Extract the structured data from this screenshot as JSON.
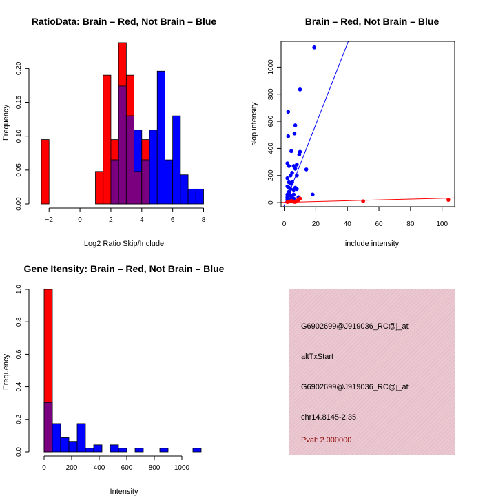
{
  "colors": {
    "red": "#ff0000",
    "blue": "#0000ff",
    "purple": "#7a0080",
    "dark_red": "#8b0000",
    "panel_bg": "#e9c6cf"
  },
  "chart_data": [
    {
      "type": "bar",
      "id": "ratio_hist",
      "title": "RatioData: Brain – Red, Not Brain – Blue",
      "xlabel": "Log2 Ratio Skip/Include",
      "ylabel": "Frequency",
      "xlim": [
        -2.5,
        8.2
      ],
      "ylim": [
        0,
        0.24
      ],
      "xticks": [
        -2,
        0,
        2,
        4,
        6,
        8
      ],
      "xtick_labels": [
        "−2",
        "0",
        "2",
        "4",
        "6",
        "8"
      ],
      "yticks": [
        0,
        0.05,
        0.1,
        0.15,
        0.2
      ],
      "ytick_labels": [
        "0.00",
        "0.05",
        "0.10",
        "0.15",
        "0.20"
      ],
      "bin_edges": [
        -2.5,
        -2,
        -1.5,
        -1,
        -0.5,
        0,
        0.5,
        1,
        1.5,
        2,
        2.5,
        3,
        3.5,
        4,
        4.5,
        5,
        5.5,
        6,
        6.5,
        7,
        7.5,
        8
      ],
      "series": [
        {
          "name": "Brain",
          "color": "red",
          "values": [
            0.095,
            0,
            0,
            0,
            0,
            0,
            0,
            0.048,
            0.19,
            0.095,
            0.238,
            0.19,
            0.048,
            0.095,
            0,
            0,
            0,
            0,
            0,
            0,
            0
          ]
        },
        {
          "name": "Not Brain",
          "color": "blue",
          "values": [
            0,
            0,
            0,
            0,
            0,
            0,
            0,
            0,
            0,
            0.065,
            0.174,
            0.13,
            0.109,
            0.065,
            0.109,
            0.196,
            0.065,
            0.13,
            0.043,
            0.022,
            0.022
          ]
        }
      ]
    },
    {
      "type": "scatter",
      "id": "intensity_scatter",
      "title": "Brain – Red, Not Brain – Blue",
      "xlabel": "include intensity",
      "ylabel": "skip intensity",
      "xlim": [
        -2,
        108
      ],
      "ylim": [
        -30,
        1190
      ],
      "xticks": [
        0,
        20,
        40,
        60,
        80,
        100
      ],
      "xtick_labels": [
        "0",
        "20",
        "40",
        "60",
        "80",
        "100"
      ],
      "yticks": [
        0,
        200,
        400,
        600,
        800,
        1000
      ],
      "ytick_labels": [
        "0",
        "200",
        "400",
        "600",
        "800",
        "1000"
      ],
      "series": [
        {
          "name": "Brain",
          "color": "red",
          "x": [
            3,
            5,
            7,
            8,
            9,
            10,
            50,
            104,
            2,
            4,
            6
          ],
          "y": [
            8,
            12,
            5,
            15,
            20,
            30,
            10,
            20,
            4,
            10,
            6
          ]
        },
        {
          "name": "Not Brain",
          "color": "blue",
          "x": [
            19,
            10,
            2.5,
            7,
            6.5,
            2.5,
            4.5,
            10,
            9.5,
            8,
            6,
            7,
            2,
            3,
            14,
            5,
            4,
            8,
            2,
            3,
            5,
            4,
            2,
            3,
            4,
            6,
            18,
            3,
            2,
            4,
            5,
            6,
            7,
            2,
            3,
            4,
            5,
            6,
            8,
            9,
            3,
            2,
            4
          ],
          "y": [
            1145,
            835,
            670,
            570,
            510,
            490,
            380,
            375,
            355,
            280,
            270,
            250,
            290,
            270,
            245,
            220,
            200,
            200,
            180,
            150,
            150,
            140,
            120,
            110,
            100,
            95,
            60,
            80,
            60,
            50,
            40,
            30,
            110,
            40,
            20,
            10,
            30,
            60,
            100,
            40,
            70,
            25,
            15
          ]
        }
      ],
      "fit_lines": [
        {
          "name": "Not Brain fit",
          "color": "blue",
          "slope": 29.8,
          "intercept": -20
        },
        {
          "name": "Brain fit",
          "color": "red",
          "slope": 0.3,
          "intercept": 2
        }
      ]
    },
    {
      "type": "bar",
      "id": "intensity_hist",
      "title": "Gene Itensity: Brain – Red, Not Brain – Blue",
      "xlabel": "Intensity",
      "ylabel": "Frequency",
      "xlim": [
        -20,
        1180
      ],
      "ylim": [
        0,
        1.0
      ],
      "xticks": [
        0,
        200,
        400,
        600,
        800,
        1000
      ],
      "xtick_labels": [
        "0",
        "200",
        "400",
        "600",
        "800",
        "1000"
      ],
      "yticks": [
        0,
        0.2,
        0.4,
        0.6,
        0.8,
        1.0
      ],
      "ytick_labels": [
        "0.0",
        "0.2",
        "0.4",
        "0.6",
        "0.8",
        "1.0"
      ],
      "bin_edges": [
        0,
        60,
        120,
        180,
        240,
        300,
        360,
        420,
        480,
        540,
        600,
        660,
        720,
        780,
        840,
        900,
        960,
        1020,
        1080,
        1140
      ],
      "series": [
        {
          "name": "Brain",
          "color": "red",
          "values": [
            1.0,
            0,
            0,
            0,
            0,
            0,
            0,
            0,
            0,
            0,
            0,
            0,
            0,
            0,
            0,
            0,
            0,
            0,
            0
          ]
        },
        {
          "name": "Not Brain",
          "color": "blue",
          "values": [
            0.304,
            0.174,
            0.087,
            0.065,
            0.174,
            0.022,
            0.043,
            0,
            0.043,
            0.022,
            0,
            0.022,
            0,
            0,
            0.022,
            0,
            0,
            0,
            0.022
          ]
        }
      ]
    }
  ],
  "info_panel": {
    "probe_id": "G6902699@J919036_RC@j_at",
    "event_type": "altTxStart",
    "probe_id_2": "G6902699@J919036_RC@j_at",
    "location": "chr14.8145-2.35",
    "pval": "Pval: 2.000000"
  }
}
